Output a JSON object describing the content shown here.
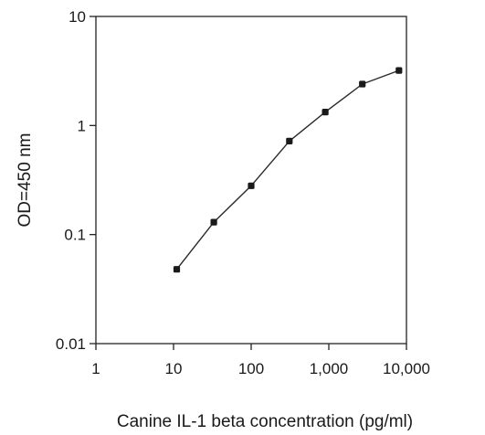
{
  "chart_data": {
    "type": "line",
    "title": "",
    "xlabel": "Canine IL-1 beta concentration (pg/ml)",
    "ylabel": "OD=450 nm",
    "x_scale": "log",
    "y_scale": "log",
    "xlim": [
      1,
      10000
    ],
    "ylim": [
      0.01,
      10
    ],
    "x_ticks": [
      1,
      10,
      100,
      1000,
      10000
    ],
    "x_tick_labels": [
      "1",
      "10",
      "100",
      "1,000",
      "10,000"
    ],
    "y_ticks": [
      0.01,
      0.1,
      1,
      10
    ],
    "y_tick_labels": [
      "0.01",
      "0.1",
      "1",
      "10"
    ],
    "grid": false,
    "legend": "none",
    "series": [
      {
        "x": [
          11,
          33,
          100,
          310,
          900,
          2700,
          8000
        ],
        "y": [
          0.048,
          0.13,
          0.28,
          0.72,
          1.33,
          2.4,
          3.2
        ]
      }
    ],
    "colors": {
      "line": "#2a2a2a",
      "marker": "#1a1a1a",
      "axis": "#222222",
      "frame": "#222222"
    }
  }
}
